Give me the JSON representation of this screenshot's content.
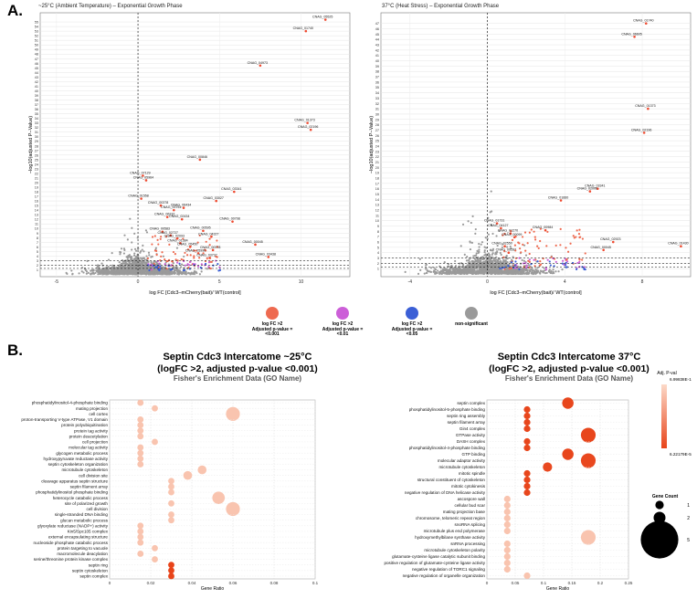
{
  "panel_a_letter": "A.",
  "panel_b_letter": "B.",
  "legend": [
    {
      "label_lines": [
        "log FC >2",
        "Adjusted p-value =",
        "<0.001"
      ],
      "color": "#ee6a50"
    },
    {
      "label_lines": [
        "log FC >2",
        "Adjusted p-value =",
        "<0.01"
      ],
      "color": "#cc5fd8"
    },
    {
      "label_lines": [
        "log FC >2",
        "Adjusted p-value =",
        "<0.05"
      ],
      "color": "#3b5fd6"
    },
    {
      "label_lines": [
        "non-significant"
      ],
      "color": "#9a9a9a"
    }
  ],
  "chart_data": [
    {
      "type": "scatter",
      "title": "~25°C (Ambient Temperature) – Exponential Growth Phase",
      "xlabel": "log FC [Cdc3–mCherry(bait)/ WT(control]",
      "ylabel": "−log10(adjusted P−Value)",
      "xlim": [
        -6,
        13
      ],
      "ylim": [
        -0.5,
        57
      ],
      "xticks": [
        -5,
        0,
        5,
        10
      ],
      "yticks": [
        1,
        2,
        3,
        4,
        5,
        6,
        7,
        8,
        9,
        10,
        11,
        12,
        13,
        14,
        15,
        16,
        17,
        18,
        19,
        20,
        21,
        22,
        23,
        24,
        25,
        26,
        27,
        28,
        29,
        30,
        31,
        32,
        33,
        34,
        35,
        36,
        37,
        38,
        39,
        40,
        41,
        42,
        43,
        44,
        45,
        46,
        47,
        48,
        49,
        50,
        51,
        52,
        53,
        54,
        55
      ],
      "vline": 0,
      "hlines": [
        1.3,
        2,
        3
      ],
      "labeled_points": [
        {
          "label": "CNAG_05525",
          "x": 11.5,
          "y": 55.5
        },
        {
          "label": "CNAG_01740",
          "x": 10.3,
          "y": 53
        },
        {
          "label": "CNAG_04973",
          "x": 7.5,
          "y": 45.5
        },
        {
          "label": "CNAG_01373",
          "x": 10.4,
          "y": 33
        },
        {
          "label": "CNAG_02196",
          "x": 10.6,
          "y": 31.5
        },
        {
          "label": "CNAG_00846",
          "x": 3.8,
          "y": 25
        },
        {
          "label": "CNAG_07129",
          "x": 0.3,
          "y": 21.5
        },
        {
          "label": "CNAG_05964",
          "x": 0.5,
          "y": 20.5
        },
        {
          "label": "CNAG_03341",
          "x": 5.9,
          "y": 18
        },
        {
          "label": "CNAG_01558",
          "x": 0.2,
          "y": 16.5
        },
        {
          "label": "CNAG_03027",
          "x": 4.8,
          "y": 16
        },
        {
          "label": "CNAG_00378",
          "x": 1.4,
          "y": 15
        },
        {
          "label": "CNAG_06434",
          "x": 2.8,
          "y": 14.5
        },
        {
          "label": "CNAG_00761",
          "x": 2.2,
          "y": 14
        },
        {
          "label": "CNAG_06232",
          "x": 1.8,
          "y": 12.5
        },
        {
          "label": "CNAG_02434",
          "x": 2.7,
          "y": 12
        },
        {
          "label": "CNAG_00708",
          "x": 5.8,
          "y": 11.5
        },
        {
          "label": "CNAG_00595",
          "x": 4.0,
          "y": 9.5
        },
        {
          "label": "CNAG_00583",
          "x": 1.5,
          "y": 9.3
        },
        {
          "label": "CNAG_02727",
          "x": 2.0,
          "y": 8.5
        },
        {
          "label": "CNAG_04327",
          "x": 4.5,
          "y": 8.2
        },
        {
          "label": "CNAG_02093",
          "x": 2.4,
          "y": 7.8
        },
        {
          "label": "CNAG_00045",
          "x": 7.2,
          "y": 6.5
        },
        {
          "label": "CNAG_01384",
          "x": 2.6,
          "y": 6.8
        },
        {
          "label": "CNAG_05450",
          "x": 3.2,
          "y": 6
        },
        {
          "label": "CNAG_00378",
          "x": 4.6,
          "y": 5.3
        },
        {
          "label": "CNAG_05990",
          "x": 3.7,
          "y": 4.6
        },
        {
          "label": "CNAG_03737",
          "x": 4.4,
          "y": 3.6
        },
        {
          "label": "CNAG_03438",
          "x": 8.0,
          "y": 3.8
        }
      ]
    },
    {
      "type": "scatter",
      "title": "37°C (Heat Stress) – Exponential Growth Phase",
      "xlabel": "log FC [Cdc3–mCherry(bait)/ WT(control]",
      "ylabel": "−log10(adjusted P−Value)",
      "xlim": [
        -5.5,
        10.5
      ],
      "ylim": [
        -0.5,
        49
      ],
      "xticks": [
        -4,
        0,
        4,
        8
      ],
      "yticks": [
        1,
        2,
        3,
        4,
        5,
        6,
        7,
        8,
        9,
        10,
        11,
        12,
        13,
        14,
        15,
        16,
        17,
        18,
        19,
        20,
        21,
        22,
        23,
        24,
        25,
        26,
        27,
        28,
        29,
        30,
        31,
        32,
        33,
        34,
        35,
        36,
        37,
        38,
        39,
        40,
        41,
        42,
        43,
        44,
        45,
        46,
        47
      ],
      "vline": 0,
      "hlines": [
        1.3,
        2,
        3
      ],
      "labeled_points": [
        {
          "label": "CNAG_01740",
          "x": 8.2,
          "y": 47
        },
        {
          "label": "CNAG_06605",
          "x": 7.6,
          "y": 44.5
        },
        {
          "label": "CNAG_01373",
          "x": 8.3,
          "y": 31
        },
        {
          "label": "CNAG_02196",
          "x": 8.1,
          "y": 26.5
        },
        {
          "label": "CNAG_03341",
          "x": 5.7,
          "y": 16
        },
        {
          "label": "CNAG_02006",
          "x": 5.3,
          "y": 15.5
        },
        {
          "label": "CNAG_01660",
          "x": 3.8,
          "y": 13.8
        },
        {
          "label": "CNAG_01731",
          "x": 0.5,
          "y": 9.5
        },
        {
          "label": "CNAG_04127",
          "x": 0.7,
          "y": 8.6
        },
        {
          "label": "CNAG_00984",
          "x": 3.0,
          "y": 8.2
        },
        {
          "label": "CNAG_01270",
          "x": 1.2,
          "y": 7.6
        },
        {
          "label": "CNAG_00099",
          "x": 1.4,
          "y": 6.9
        },
        {
          "label": "CNAG_01430",
          "x": 10.0,
          "y": 5.2
        },
        {
          "label": "CNAG_02923",
          "x": 6.5,
          "y": 6.0
        },
        {
          "label": "CNAG_00045",
          "x": 6.0,
          "y": 4.5
        },
        {
          "label": "CNAG_02550",
          "x": 0.9,
          "y": 5.2
        },
        {
          "label": "CNAG_00287",
          "x": 1.1,
          "y": 4.0
        }
      ]
    },
    {
      "type": "scatter",
      "subtype": "bubble",
      "title_lines": [
        "Septin Cdc3 Intercatome ~25°C",
        "(logFC >2, adjusted p-value <0.001)",
        "Fisher's Enrichment Data (GO Name)"
      ],
      "xlabel": "Gene Ratio",
      "xlim": [
        0,
        0.1
      ],
      "xticks": [
        0,
        0.02,
        0.04,
        0.06,
        0.08,
        0.1
      ],
      "xtick_labels": [
        "0",
        "0.02",
        "0.04",
        "0.06",
        "0.08",
        "0.1"
      ],
      "color_encodes": "adjusted p-value",
      "size_encodes": "gene count",
      "terms": [
        {
          "name": "phosphatidylinositol-4-phosphate binding",
          "ratio": 0.015,
          "count": 1,
          "padj": 0.6
        },
        {
          "name": "mating projection",
          "ratio": 0.022,
          "count": 1,
          "padj": 0.6
        },
        {
          "name": "cell cortex",
          "ratio": 0.06,
          "count": 5,
          "padj": 0.6
        },
        {
          "name": "proton-transporting V-type ATPase, V1 domain",
          "ratio": 0.015,
          "count": 1,
          "padj": 0.6
        },
        {
          "name": "protein polyubiquitination",
          "ratio": 0.015,
          "count": 1,
          "padj": 0.6
        },
        {
          "name": "protein tag activity",
          "ratio": 0.015,
          "count": 1,
          "padj": 0.6
        },
        {
          "name": "protein deacetylation",
          "ratio": 0.015,
          "count": 1,
          "padj": 0.6
        },
        {
          "name": "cell projection",
          "ratio": 0.022,
          "count": 1,
          "padj": 0.6
        },
        {
          "name": "molecular tag activity",
          "ratio": 0.015,
          "count": 1,
          "padj": 0.6
        },
        {
          "name": "glycogen metabolic process",
          "ratio": 0.015,
          "count": 1,
          "padj": 0.6
        },
        {
          "name": "hydroxypyruvate reductase activity",
          "ratio": 0.015,
          "count": 1,
          "padj": 0.6
        },
        {
          "name": "septin cytoskeleton organization",
          "ratio": 0.015,
          "count": 1,
          "padj": 0.6
        },
        {
          "name": "microtubule cytoskeleton",
          "ratio": 0.045,
          "count": 2,
          "padj": 0.6
        },
        {
          "name": "cell division site",
          "ratio": 0.038,
          "count": 2,
          "padj": 0.6
        },
        {
          "name": "cleavage apparatus septin structure",
          "ratio": 0.03,
          "count": 1,
          "padj": 0.6
        },
        {
          "name": "septin filament array",
          "ratio": 0.03,
          "count": 1,
          "padj": 0.6
        },
        {
          "name": "phosphatidylinositol phosphate binding",
          "ratio": 0.03,
          "count": 1,
          "padj": 0.6
        },
        {
          "name": "heterocycle catabolic process",
          "ratio": 0.053,
          "count": 4,
          "padj": 0.6
        },
        {
          "name": "site of polarized growth",
          "ratio": 0.03,
          "count": 1,
          "padj": 0.6
        },
        {
          "name": "cell division",
          "ratio": 0.06,
          "count": 5,
          "padj": 0.6
        },
        {
          "name": "single-stranded DNA binding",
          "ratio": 0.03,
          "count": 1,
          "padj": 0.6
        },
        {
          "name": "glucan metabolic process",
          "ratio": 0.03,
          "count": 1,
          "padj": 0.6
        },
        {
          "name": "glyoxylate reductase (NADP+) activity",
          "ratio": 0.015,
          "count": 1,
          "padj": 0.6
        },
        {
          "name": "Kin5/Spc105 complex",
          "ratio": 0.015,
          "count": 1,
          "padj": 0.6
        },
        {
          "name": "external encapsulating structure",
          "ratio": 0.015,
          "count": 1,
          "padj": 0.6
        },
        {
          "name": "nucleoside phosphate catabolic process",
          "ratio": 0.015,
          "count": 1,
          "padj": 0.6
        },
        {
          "name": "protein targeting to vacuole",
          "ratio": 0.022,
          "count": 1,
          "padj": 0.6
        },
        {
          "name": "macromolecule deacylation",
          "ratio": 0.015,
          "count": 1,
          "padj": 0.6
        },
        {
          "name": "serine/threonine protein kinase complex",
          "ratio": 0.022,
          "count": 1,
          "padj": 0.6
        },
        {
          "name": "septin ring",
          "ratio": 0.03,
          "count": 1,
          "padj": 1e-06
        },
        {
          "name": "septin cytoskeleton",
          "ratio": 0.03,
          "count": 1,
          "padj": 1e-06
        },
        {
          "name": "septin complex",
          "ratio": 0.03,
          "count": 1,
          "padj": 1e-06
        }
      ]
    },
    {
      "type": "scatter",
      "subtype": "bubble",
      "title_lines": [
        "Septin Cdc3 Intercatome 37°C",
        "(logFC >2, adjusted p-value <0.001)",
        "Fisher's Enrichment Data (GO Name)"
      ],
      "xlabel": "Gene Ratio",
      "xlim": [
        0,
        0.25
      ],
      "xticks": [
        0,
        0.05,
        0.1,
        0.15,
        0.2,
        0.25
      ],
      "xtick_labels": [
        "0",
        "0.05",
        "0.1",
        "0.15",
        "0.2",
        "0.25"
      ],
      "color_encodes": "adjusted p-value",
      "size_encodes": "gene count",
      "terms": [
        {
          "name": "septin complex",
          "ratio": 0.143,
          "count": 3,
          "padj": 0.01
        },
        {
          "name": "phosphatidylinositol-5-phosphate binding",
          "ratio": 0.071,
          "count": 1,
          "padj": 0.01
        },
        {
          "name": "septin ring assembly",
          "ratio": 0.071,
          "count": 1,
          "padj": 0.01
        },
        {
          "name": "septin filament array",
          "ratio": 0.071,
          "count": 1,
          "padj": 0.01
        },
        {
          "name": "Gin4 complex",
          "ratio": 0.071,
          "count": 1,
          "padj": 0.01
        },
        {
          "name": "GTPase activity",
          "ratio": 0.179,
          "count": 5,
          "padj": 0.01
        },
        {
          "name": "DASH complex",
          "ratio": 0.071,
          "count": 1,
          "padj": 0.01
        },
        {
          "name": "phosphatidylinositol-4-phosphate binding",
          "ratio": 0.071,
          "count": 1,
          "padj": 0.01
        },
        {
          "name": "GTP binding",
          "ratio": 0.143,
          "count": 3,
          "padj": 0.01
        },
        {
          "name": "molecular adaptor activity",
          "ratio": 0.179,
          "count": 5,
          "padj": 0.02
        },
        {
          "name": "microtubule cytoskeleton",
          "ratio": 0.107,
          "count": 2,
          "padj": 0.02
        },
        {
          "name": "mitotic spindle",
          "ratio": 0.071,
          "count": 1,
          "padj": 0.01
        },
        {
          "name": "structural constituent of cytoskeleton",
          "ratio": 0.071,
          "count": 1,
          "padj": 0.01
        },
        {
          "name": "mitotic cytokinesis",
          "ratio": 0.071,
          "count": 1,
          "padj": 0.01
        },
        {
          "name": "negative regulation of DNA helicase activity",
          "ratio": 0.071,
          "count": 1,
          "padj": 0.01
        },
        {
          "name": "ascospore wall",
          "ratio": 0.036,
          "count": 1,
          "padj": 0.6
        },
        {
          "name": "cellular bud scar",
          "ratio": 0.036,
          "count": 1,
          "padj": 0.6
        },
        {
          "name": "mating projection base",
          "ratio": 0.036,
          "count": 1,
          "padj": 0.6
        },
        {
          "name": "chromosome, telomeric repeat region",
          "ratio": 0.036,
          "count": 1,
          "padj": 0.6
        },
        {
          "name": "snoRNA splicing",
          "ratio": 0.036,
          "count": 1,
          "padj": 0.6
        },
        {
          "name": "microtubule plus end polymerase",
          "ratio": 0.036,
          "count": 1,
          "padj": 0.6
        },
        {
          "name": "hydroxymethylbilane synthase activity",
          "ratio": 0.179,
          "count": 5,
          "padj": 0.6
        },
        {
          "name": "snRNA processing",
          "ratio": 0.036,
          "count": 1,
          "padj": 0.6
        },
        {
          "name": "microtubule cytoskeleton polarity",
          "ratio": 0.036,
          "count": 1,
          "padj": 0.6
        },
        {
          "name": "glutamate-cysteine ligase catalytic subunit binding",
          "ratio": 0.036,
          "count": 1,
          "padj": 0.6
        },
        {
          "name": "positive regulation of glutamate-cysteine ligase activity",
          "ratio": 0.036,
          "count": 1,
          "padj": 0.6
        },
        {
          "name": "negative regulation of TORC1 signaling",
          "ratio": 0.036,
          "count": 1,
          "padj": 0.6
        },
        {
          "name": "negative regulation of organelle organization",
          "ratio": 0.071,
          "count": 1,
          "padj": 0.6
        }
      ]
    }
  ],
  "color_legend": {
    "title": "Adj. P-val",
    "max_label": "6.99838E-1",
    "min_label": "6.22179E-5",
    "color_high": "#fcd9c8",
    "color_low": "#e8441a"
  },
  "size_legend": {
    "title": "Gene Count",
    "labels": [
      "1",
      "2",
      "5"
    ]
  }
}
